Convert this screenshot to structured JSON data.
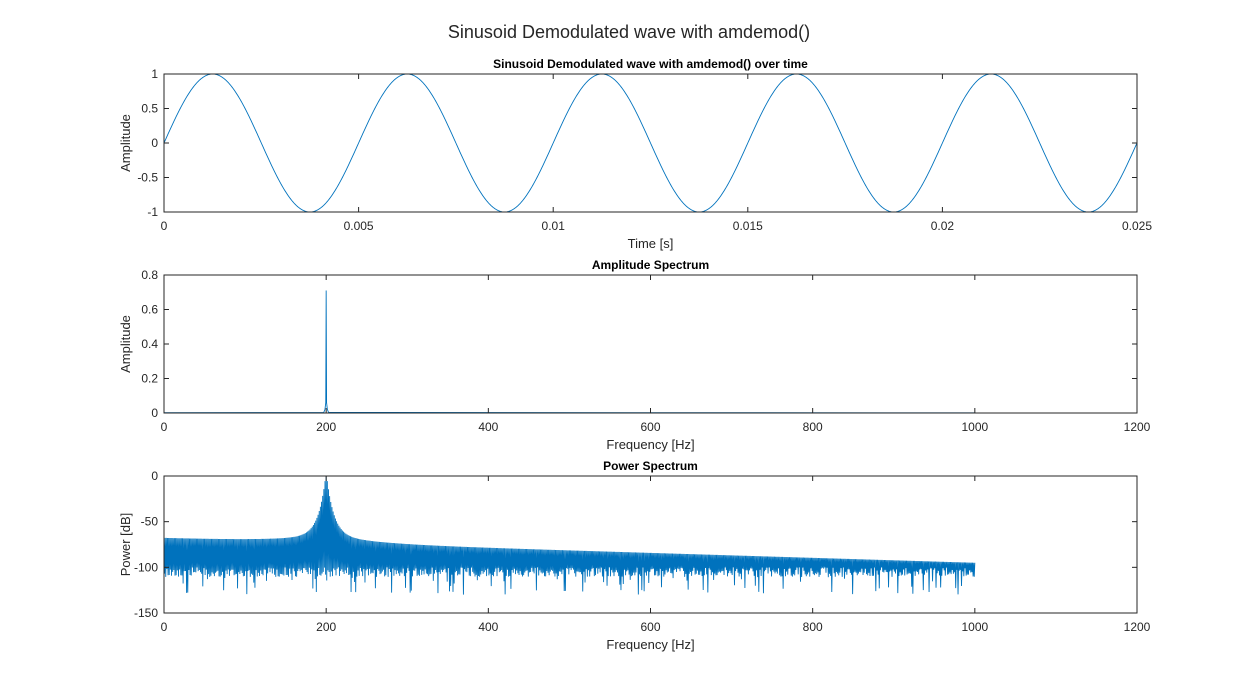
{
  "figure_title": "Sinusoid Demodulated wave with amdemod()",
  "colors": {
    "line": "#0072BD",
    "axes": "#262626",
    "background": "#ffffff"
  },
  "chart_data": [
    {
      "type": "line",
      "title": "Sinusoid Demodulated wave with amdemod() over time",
      "xlabel": "Time [s]",
      "ylabel": "Amplitude",
      "xlim": [
        0,
        0.025
      ],
      "ylim": [
        -1,
        1
      ],
      "xticks": [
        "0",
        "0.005",
        "0.01",
        "0.015",
        "0.02",
        "0.025"
      ],
      "yticks": [
        "-1",
        "-0.5",
        "0",
        "0.5",
        "1"
      ],
      "grid": false,
      "series": [
        {
          "function": "sin(2*pi*200*t)",
          "frequency_hz": 200,
          "amplitude": 1,
          "t_range": [
            0,
            0.025
          ]
        }
      ]
    },
    {
      "type": "line",
      "title": "Amplitude Spectrum",
      "xlabel": "Frequency [Hz]",
      "ylabel": "Amplitude",
      "xlim": [
        0,
        1200
      ],
      "ylim": [
        0,
        0.8
      ],
      "xticks": [
        "0",
        "200",
        "400",
        "600",
        "800",
        "1000",
        "1200"
      ],
      "yticks": [
        "0",
        "0.2",
        "0.4",
        "0.6",
        "0.8"
      ],
      "grid": false,
      "series": [
        {
          "peak_frequency_hz": 200,
          "peak_value": 0.71,
          "f_range": [
            0,
            1000
          ],
          "baseline": 0
        }
      ]
    },
    {
      "type": "line",
      "title": "Power Spectrum",
      "xlabel": "Frequency [Hz]",
      "ylabel": "Power [dB]",
      "xlim": [
        0,
        1200
      ],
      "ylim": [
        -150,
        0
      ],
      "xticks": [
        "0",
        "200",
        "400",
        "600",
        "800",
        "1000",
        "1200"
      ],
      "yticks": [
        "-150",
        "-100",
        "-50",
        "0"
      ],
      "grid": false,
      "series": [
        {
          "peak_frequency_hz": 200,
          "peak_db": 0,
          "envelope_db_at_0hz": -68,
          "envelope_db_at_1000hz": -95,
          "null_floor_db": [
            -100,
            -130
          ],
          "f_range": [
            0,
            1000
          ]
        }
      ]
    }
  ]
}
